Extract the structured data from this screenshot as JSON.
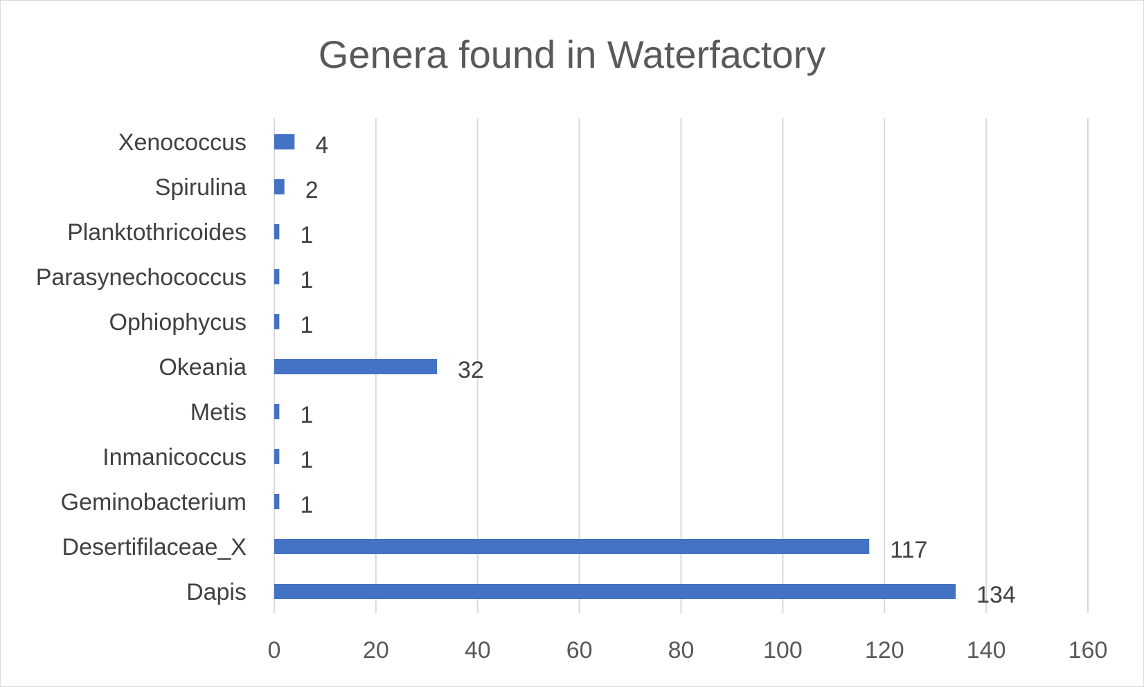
{
  "chart_data": {
    "type": "bar",
    "orientation": "horizontal",
    "title": "Genera found in Waterfactory",
    "categories": [
      "Dapis",
      "Desertifilaceae_X",
      "Geminobacterium",
      "Inmanicoccus",
      "Metis",
      "Okeania",
      "Ophiophycus",
      "Parasynechococcus",
      "Planktothricoides",
      "Spirulina",
      "Xenococcus"
    ],
    "values": [
      134,
      117,
      1,
      1,
      1,
      32,
      1,
      1,
      1,
      2,
      4
    ],
    "xlim": [
      0,
      160
    ],
    "xticks": [
      0,
      20,
      40,
      60,
      80,
      100,
      120,
      140,
      160
    ],
    "xlabel": "",
    "ylabel": "",
    "grid": "vertical",
    "legend": "none",
    "data_labels": true,
    "bar_color": "#4472C4"
  }
}
